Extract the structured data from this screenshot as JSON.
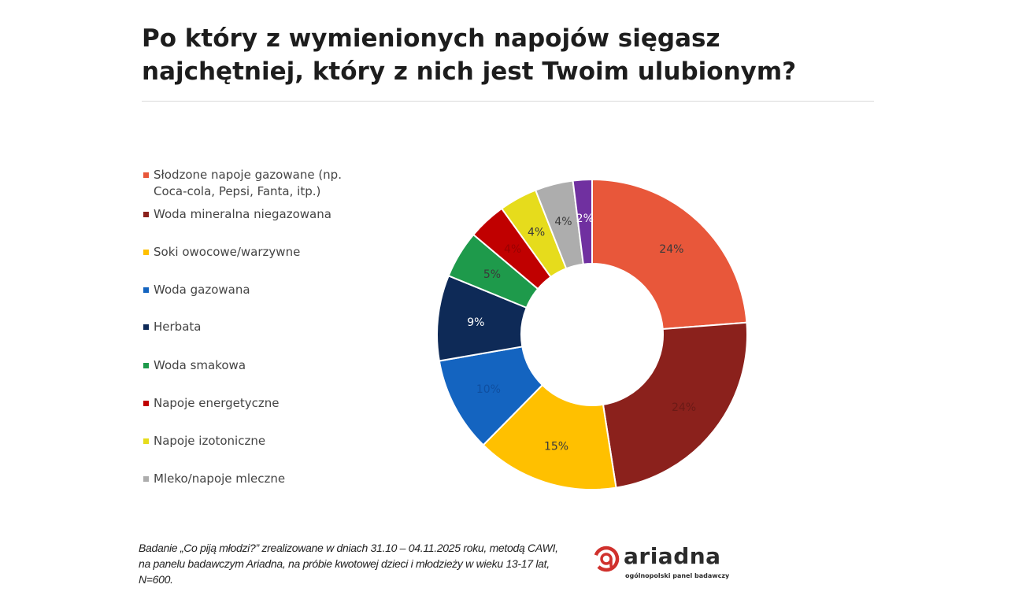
{
  "title": {
    "line1": "Po który z wymienionych napojów sięgasz",
    "line2": "najchętniej, który z nich jest Twoim ulubionym?"
  },
  "legend": [
    {
      "label": "Słodzone napoje gazowane (np. Coca-cola, Pepsi, Fanta, itp.)",
      "color": "#E8573A"
    },
    {
      "label": "Woda mineralna niegazowana",
      "color": "#8B211C"
    },
    {
      "label": "Soki owocowe/warzywne",
      "color": "#FFC000"
    },
    {
      "label": "Woda gazowana",
      "color": "#1464C0"
    },
    {
      "label": "Herbata",
      "color": "#0E2A57"
    },
    {
      "label": "Woda smakowa",
      "color": "#1E9A4B"
    },
    {
      "label": "Napoje energetyczne",
      "color": "#C00000"
    },
    {
      "label": "Napoje izotoniczne",
      "color": "#E6DC1C"
    },
    {
      "label": "Mleko/napoje mleczne",
      "color": "#ADADAD"
    }
  ],
  "chart_data": {
    "type": "pie",
    "donut": true,
    "categories": [
      "Słodzone napoje gazowane (np. Coca-cola, Pepsi, Fanta, itp.)",
      "Woda mineralna niegazowana",
      "Soki owocowe/warzywne",
      "Woda gazowana",
      "Herbata",
      "Woda smakowa",
      "Napoje energetyczne",
      "Napoje izotoniczne",
      "Mleko/napoje mleczne",
      ""
    ],
    "values": [
      24,
      24,
      15,
      10,
      9,
      5,
      4,
      4,
      4,
      2
    ],
    "labels": [
      "24%",
      "24%",
      "15%",
      "10%",
      "9%",
      "5%",
      "4%",
      "4%",
      "4%",
      "2%"
    ],
    "colors": [
      "#E8573A",
      "#8B211C",
      "#FFC000",
      "#1464C0",
      "#0E2A57",
      "#1E9A4B",
      "#C00000",
      "#E6DC1C",
      "#ADADAD",
      "#7030A0"
    ],
    "label_colors": [
      "#3a3a3a",
      "#6b1a16",
      "#3a3a3a",
      "#0f4fa0",
      "#ffffff",
      "#3a3a3a",
      "#9a0000",
      "#3a3a3a",
      "#3a3a3a",
      "#ffffff"
    ],
    "legend_position": "left"
  },
  "footnote": "Badanie „Co piją młodzi?” zrealizowane w dniach 31.10 – 04.11.2025 roku, metodą CAWI, na panelu badawczym Ariadna, na próbie kwotowej dzieci i młodzieży w wieku 13-17 lat, N=600.",
  "logo": {
    "wordmark": "ariadna",
    "tagline": "ogólnopolski panel badawczy",
    "accent_color": "#D0312D"
  }
}
